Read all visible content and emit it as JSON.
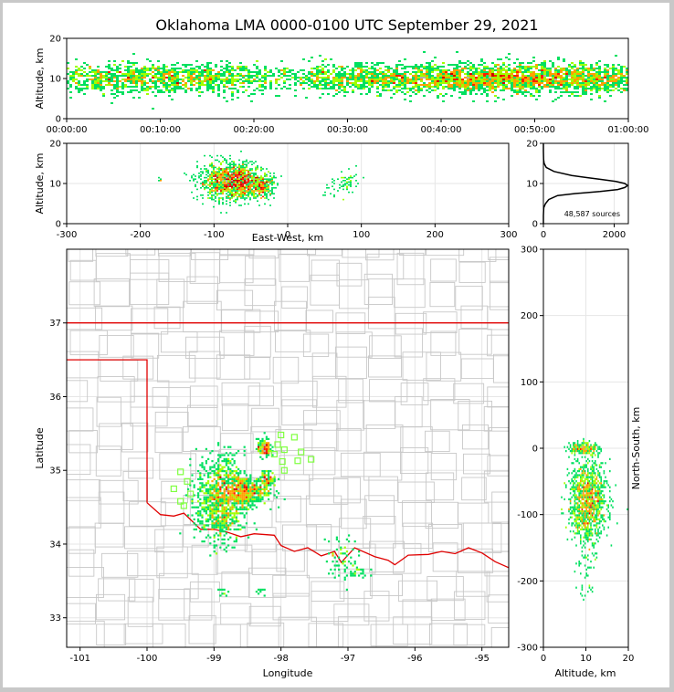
{
  "title": "Oklahoma LMA 0000-0100 UTC September 29, 2021",
  "colors": {
    "state_border": "#e00000",
    "county": "#c8c8c8",
    "grid": "#e6e6e6",
    "station": "#7fff3f",
    "profile": "#000000"
  },
  "chart_data": [
    {
      "panel": "time-altitude",
      "type": "heatmap",
      "ylabel": "Altitude, km",
      "xlabel": "",
      "y_ticks": [
        0,
        10,
        20
      ],
      "ylim": [
        0,
        20
      ],
      "x_ticks": [
        "00:00:00",
        "00:10:00",
        "00:20:00",
        "00:30:00",
        "00:40:00",
        "00:50:00",
        "01:00:00"
      ],
      "xlim_minutes": [
        0,
        60
      ],
      "band_center_km": 10,
      "band_halfwidth_km": 3
    },
    {
      "panel": "east-west-altitude",
      "type": "heatmap",
      "xlabel": "East-West, km",
      "ylabel": "Altitude, km",
      "x_ticks": [
        -300,
        -200,
        -100,
        0,
        100,
        200,
        300
      ],
      "xlim": [
        -300,
        300
      ],
      "y_ticks": [
        0,
        10,
        20
      ],
      "ylim": [
        0,
        20
      ],
      "clusters": [
        {
          "x": -85,
          "y": 10.5,
          "sx": 18,
          "sy": 2.3,
          "n": 900
        },
        {
          "x": -60,
          "y": 10.5,
          "sx": 12,
          "sy": 2.0,
          "n": 500
        },
        {
          "x": -35,
          "y": 9.5,
          "sx": 8,
          "sy": 1.8,
          "n": 300
        },
        {
          "x": 80,
          "y": 10,
          "sx": 8,
          "sy": 1.6,
          "n": 60
        },
        {
          "x": -175,
          "y": 11,
          "sx": 2,
          "sy": 0.4,
          "n": 6
        },
        {
          "x": 55,
          "y": 8,
          "sx": 6,
          "sy": 1.0,
          "n": 10
        }
      ]
    },
    {
      "panel": "altitude-histogram",
      "type": "line",
      "y_ticks": [
        0,
        10,
        20
      ],
      "ylim": [
        0,
        20
      ],
      "x_ticks": [
        0,
        2000
      ],
      "xlim": [
        0,
        2400
      ],
      "label": "48,587 sources",
      "profile_alt_km": [
        0,
        2,
        4,
        5,
        6,
        7,
        7.5,
        8,
        8.5,
        9,
        9.5,
        10,
        10.5,
        11,
        11.5,
        12,
        13,
        14,
        15,
        16,
        18,
        20
      ],
      "profile_count": [
        0,
        0,
        10,
        60,
        150,
        400,
        900,
        1600,
        2100,
        2300,
        2380,
        2300,
        2050,
        1650,
        1200,
        800,
        300,
        80,
        20,
        5,
        0,
        0
      ]
    },
    {
      "panel": "plan-view",
      "type": "scatter",
      "xlabel": "Longitude",
      "ylabel": "Latitude",
      "x_ticks": [
        -101,
        -100,
        -99,
        -98,
        -97,
        -96,
        -95
      ],
      "xlim": [
        -101.2,
        -94.6
      ],
      "y_ticks": [
        33,
        34,
        35,
        36,
        37
      ],
      "ylim": [
        32.6,
        38.0
      ],
      "state_lines": [
        [
          [
            -101.2,
            37.0
          ],
          [
            -94.6,
            37.0
          ]
        ],
        [
          [
            -101.2,
            36.5
          ],
          [
            -100.0,
            36.5
          ],
          [
            -100.0,
            34.56
          ]
        ],
        [
          [
            -100.0,
            34.56
          ],
          [
            -99.8,
            34.4
          ],
          [
            -99.6,
            34.38
          ],
          [
            -99.45,
            34.42
          ],
          [
            -99.2,
            34.2
          ],
          [
            -99.0,
            34.2
          ],
          [
            -98.8,
            34.16
          ],
          [
            -98.6,
            34.1
          ],
          [
            -98.4,
            34.14
          ],
          [
            -98.1,
            34.12
          ],
          [
            -98.0,
            33.98
          ],
          [
            -97.8,
            33.9
          ],
          [
            -97.6,
            33.95
          ],
          [
            -97.4,
            33.84
          ],
          [
            -97.2,
            33.9
          ],
          [
            -97.1,
            33.75
          ],
          [
            -96.9,
            33.95
          ],
          [
            -96.6,
            33.83
          ],
          [
            -96.4,
            33.78
          ],
          [
            -96.3,
            33.72
          ],
          [
            -96.1,
            33.85
          ],
          [
            -95.8,
            33.86
          ],
          [
            -95.6,
            33.9
          ],
          [
            -95.4,
            33.87
          ],
          [
            -95.2,
            33.95
          ],
          [
            -95.0,
            33.88
          ],
          [
            -94.8,
            33.76
          ],
          [
            -94.6,
            33.68
          ]
        ]
      ],
      "stations": [
        [
          -99.6,
          34.75
        ],
        [
          -99.5,
          34.98
        ],
        [
          -99.4,
          34.85
        ],
        [
          -99.35,
          34.68
        ],
        [
          -99.5,
          34.58
        ],
        [
          -99.45,
          34.52
        ],
        [
          -98.0,
          35.48
        ],
        [
          -97.8,
          35.45
        ],
        [
          -98.05,
          35.35
        ],
        [
          -97.95,
          35.28
        ],
        [
          -98.1,
          35.22
        ],
        [
          -97.7,
          35.25
        ],
        [
          -97.55,
          35.15
        ],
        [
          -97.75,
          35.13
        ],
        [
          -97.98,
          35.12
        ],
        [
          -97.95,
          35.0
        ]
      ],
      "clusters": [
        {
          "x": -98.9,
          "y": 34.6,
          "sx": 0.18,
          "sy": 0.3,
          "n": 900
        },
        {
          "x": -98.55,
          "y": 34.72,
          "sx": 0.18,
          "sy": 0.1,
          "n": 500
        },
        {
          "x": -98.25,
          "y": 35.3,
          "sx": 0.05,
          "sy": 0.06,
          "n": 150
        },
        {
          "x": -98.2,
          "y": 34.88,
          "sx": 0.06,
          "sy": 0.05,
          "n": 100
        },
        {
          "x": -97.1,
          "y": 33.85,
          "sx": 0.12,
          "sy": 0.15,
          "n": 60
        },
        {
          "x": -96.9,
          "y": 33.62,
          "sx": 0.1,
          "sy": 0.05,
          "n": 30
        },
        {
          "x": -98.9,
          "y": 33.35,
          "sx": 0.05,
          "sy": 0.03,
          "n": 10
        },
        {
          "x": -98.3,
          "y": 33.35,
          "sx": 0.05,
          "sy": 0.03,
          "n": 8
        }
      ]
    },
    {
      "panel": "altitude-north-south",
      "type": "heatmap",
      "xlabel": "Altitude, km",
      "ylabel": "North-South, km",
      "x_ticks": [
        0,
        10,
        20
      ],
      "xlim": [
        0,
        20
      ],
      "y_ticks": [
        -300,
        -200,
        -100,
        0,
        100,
        200,
        300
      ],
      "ylim": [
        -300,
        300
      ],
      "clusters": [
        {
          "x": 10.5,
          "y": -70,
          "sx": 2.2,
          "sy": 25,
          "n": 900
        },
        {
          "x": 10.5,
          "y": -110,
          "sx": 2.0,
          "sy": 15,
          "n": 300
        },
        {
          "x": 9.5,
          "y": 0,
          "sx": 1.8,
          "sy": 5,
          "n": 200
        },
        {
          "x": 10,
          "y": -170,
          "sx": 1.2,
          "sy": 15,
          "n": 40
        },
        {
          "x": 10,
          "y": -215,
          "sx": 1.2,
          "sy": 7,
          "n": 15
        }
      ]
    }
  ]
}
